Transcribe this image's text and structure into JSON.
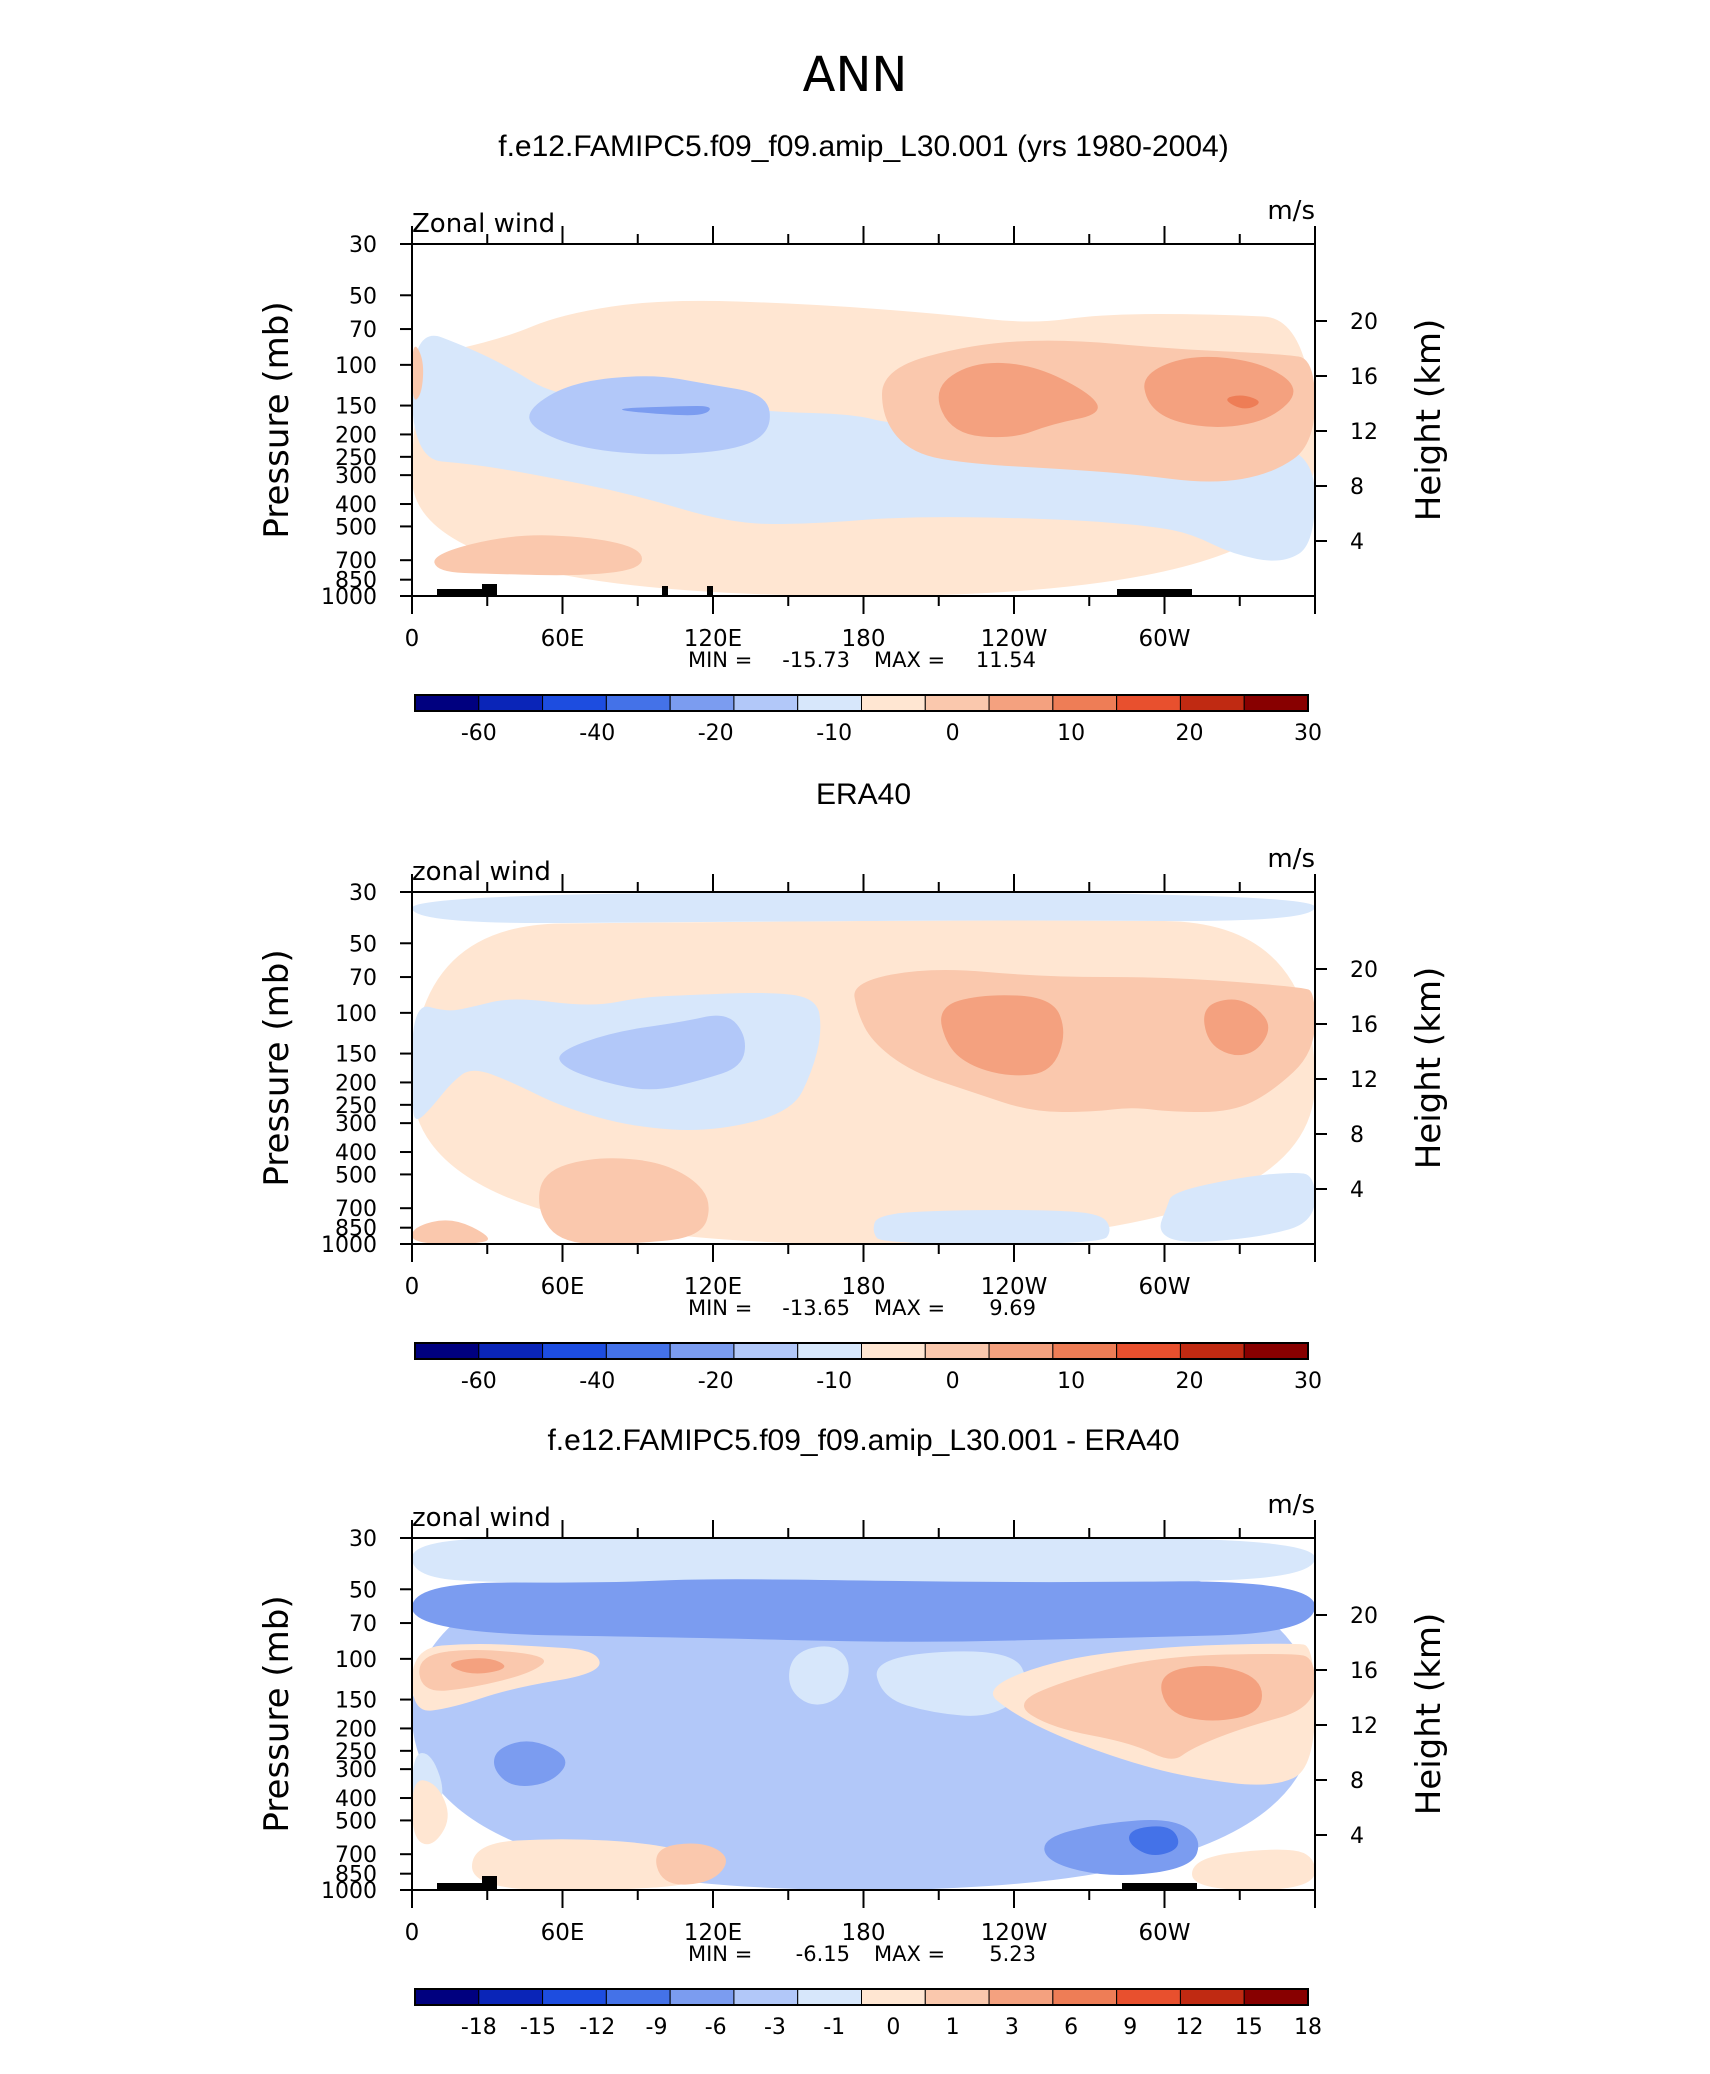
{
  "figure": {
    "season": "ANN",
    "palette": {
      "blues": [
        "#00007f",
        "#0a25b8",
        "#1d4de0",
        "#4472e8",
        "#7b9cf0",
        "#b2c8f9",
        "#d7e7fb"
      ],
      "reds": [
        "#ffe6d2",
        "#fac8ad",
        "#f4a17f",
        "#ee7d56",
        "#e8502e",
        "#c02a12",
        "#880000"
      ],
      "land": "#000000"
    }
  },
  "chart_data": [
    {
      "type": "contour",
      "title": "f.e12.FAMIPC5.f09_f09.amip_L30.001 (yrs 1980-2004)",
      "left_label": "Zonal wind",
      "right_label": "m/s",
      "ylabel": "Pressure (mb)",
      "y2label": "Height (km)",
      "x_ticks": [
        "0",
        "60E",
        "120E",
        "180",
        "120W",
        "60W"
      ],
      "p_ticks": [
        "30",
        "50",
        "70",
        "100",
        "150",
        "200",
        "250",
        "300",
        "400",
        "500",
        "700",
        "850",
        "1000"
      ],
      "h_ticks": [
        "20",
        "16",
        "12",
        "8",
        "4"
      ],
      "stats": {
        "min_label": "MIN =",
        "min": "-15.73",
        "max_label": "MAX =",
        "max": "11.54"
      },
      "levels": [
        "-60",
        "-40",
        "-20",
        "-10",
        "0",
        "10",
        "20",
        "30"
      ],
      "ylim": [
        1000,
        30
      ],
      "xlim": [
        "0",
        "360"
      ]
    },
    {
      "type": "contour",
      "title": "ERA40",
      "left_label": "zonal wind",
      "right_label": "m/s",
      "ylabel": "Pressure (mb)",
      "y2label": "Height (km)",
      "x_ticks": [
        "0",
        "60E",
        "120E",
        "180",
        "120W",
        "60W"
      ],
      "p_ticks": [
        "30",
        "50",
        "70",
        "100",
        "150",
        "200",
        "250",
        "300",
        "400",
        "500",
        "700",
        "850",
        "1000"
      ],
      "h_ticks": [
        "20",
        "16",
        "12",
        "8",
        "4"
      ],
      "stats": {
        "min_label": "MIN =",
        "min": "-13.65",
        "max_label": "MAX =",
        "max": "9.69"
      },
      "levels": [
        "-60",
        "-40",
        "-20",
        "-10",
        "0",
        "10",
        "20",
        "30"
      ],
      "ylim": [
        1000,
        30
      ],
      "xlim": [
        "0",
        "360"
      ]
    },
    {
      "type": "contour",
      "title": "f.e12.FAMIPC5.f09_f09.amip_L30.001 - ERA40",
      "left_label": "zonal wind",
      "right_label": "m/s",
      "ylabel": "Pressure (mb)",
      "y2label": "Height (km)",
      "x_ticks": [
        "0",
        "60E",
        "120E",
        "180",
        "120W",
        "60W"
      ],
      "p_ticks": [
        "30",
        "50",
        "70",
        "100",
        "150",
        "200",
        "250",
        "300",
        "400",
        "500",
        "700",
        "850",
        "1000"
      ],
      "h_ticks": [
        "20",
        "16",
        "12",
        "8",
        "4"
      ],
      "stats": {
        "min_label": "MIN =",
        "min": "-6.15",
        "max_label": "MAX =",
        "max": "5.23"
      },
      "levels": [
        "-18",
        "-15",
        "-12",
        "-9",
        "-6",
        "-3",
        "-1",
        "0",
        "1",
        "3",
        "6",
        "9",
        "12",
        "15",
        "18"
      ],
      "ylim": [
        1000,
        30
      ],
      "xlim": [
        "0",
        "360"
      ]
    }
  ]
}
